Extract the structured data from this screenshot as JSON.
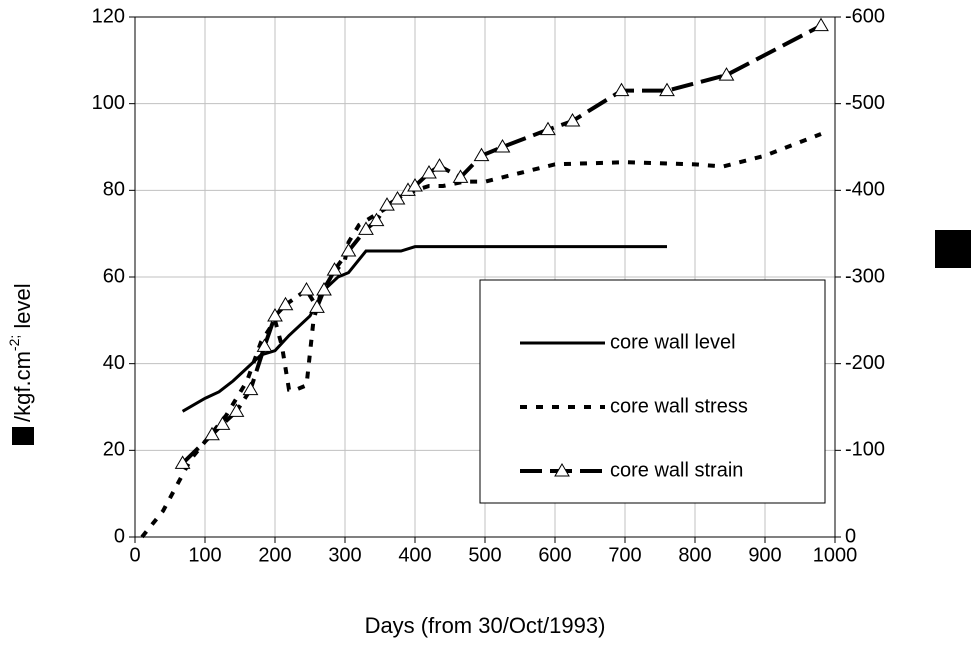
{
  "chart_data": {
    "type": "line",
    "xlabel": "Days (from 30/Oct/1993)",
    "ylabel": [
      "/kgf.cm",
      "-2;",
      " level"
    ],
    "xlim": [
      0,
      1000
    ],
    "xticks": [
      0,
      100,
      200,
      300,
      400,
      500,
      600,
      700,
      800,
      900,
      1000
    ],
    "ylim": [
      0,
      120
    ],
    "yticks": [
      0,
      20,
      40,
      60,
      80,
      100,
      120
    ],
    "y2lim": [
      0,
      -600
    ],
    "y2ticks": [
      0,
      -100,
      -200,
      -300,
      -400,
      -500,
      -600
    ],
    "grid": true,
    "legend": "lower right",
    "series": [
      {
        "name": "core wall level",
        "color": "#000000",
        "style": "solid",
        "x": [
          68,
          100,
          120,
          140,
          160,
          180,
          200,
          220,
          250,
          270,
          290,
          305,
          330,
          380,
          400,
          760
        ],
        "values": [
          29,
          32,
          33.5,
          36,
          39,
          42,
          43,
          46.5,
          51,
          57,
          60,
          61,
          66,
          66,
          67,
          67
        ]
      },
      {
        "name": "core wall stress",
        "color": "#000000",
        "style": "dotted",
        "x": [
          10,
          20,
          40,
          60,
          80,
          100,
          130,
          160,
          180,
          200,
          210,
          220,
          230,
          245,
          255,
          265,
          280,
          300,
          305,
          320,
          340,
          360,
          380,
          400,
          420,
          440,
          470,
          500,
          550,
          600,
          700,
          800,
          840,
          900,
          980
        ],
        "values": [
          0,
          2,
          6,
          12,
          18,
          22,
          28,
          36,
          45,
          50,
          44,
          34,
          34,
          35,
          50,
          56,
          60,
          64,
          68,
          72,
          74,
          76,
          78,
          80,
          81,
          81,
          82,
          82,
          84,
          86,
          86.5,
          86,
          85.5,
          88,
          93
        ]
      },
      {
        "name": "core wall strain",
        "color": "#000000",
        "style": "dashed",
        "axis": "y2",
        "marker": "triangle",
        "x": [
          68,
          110,
          125,
          145,
          165,
          185,
          200,
          215,
          245,
          260,
          270,
          285,
          305,
          330,
          345,
          360,
          375,
          390,
          400,
          420,
          435,
          465,
          495,
          525,
          590,
          625,
          695,
          760,
          845,
          980
        ],
        "values": [
          -85,
          -118,
          -130,
          -145,
          -170,
          -220,
          -255,
          -268,
          -285,
          -265,
          -285,
          -308,
          -330,
          -355,
          -365,
          -383,
          -390,
          -400,
          -405,
          -420,
          -428,
          -415,
          -440,
          -450,
          -470,
          -480,
          -515,
          -515,
          -533,
          -590
        ]
      }
    ]
  }
}
